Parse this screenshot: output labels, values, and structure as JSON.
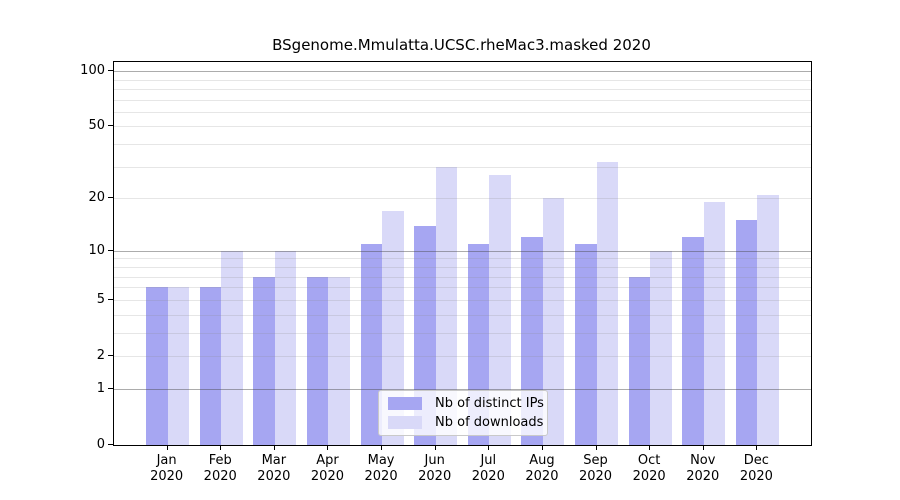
{
  "chart_data": {
    "type": "bar",
    "title": "BSgenome.Mmulatta.UCSC.rheMac3.masked 2020",
    "categories": [
      "Jan",
      "Feb",
      "Mar",
      "Apr",
      "May",
      "Jun",
      "Jul",
      "Aug",
      "Sep",
      "Oct",
      "Nov",
      "Dec"
    ],
    "year_label": "2020",
    "series": [
      {
        "name": "Nb of distinct IPs",
        "color": "#a6a6f2",
        "values": [
          6,
          6,
          7,
          7,
          11,
          14,
          11,
          12,
          11,
          7,
          12,
          15
        ]
      },
      {
        "name": "Nb of downloads",
        "color": "#d9d9f8",
        "values": [
          6,
          10,
          10,
          7,
          17,
          30,
          27,
          20,
          32,
          10,
          19,
          21
        ]
      }
    ],
    "xlabel": "",
    "ylabel": "",
    "yscale": "log1p",
    "ylim": [
      0,
      112
    ],
    "yticks": [
      0,
      1,
      2,
      5,
      10,
      20,
      50,
      100
    ],
    "gridlines_minor": [
      2,
      3,
      4,
      5,
      6,
      7,
      8,
      9,
      20,
      30,
      40,
      50,
      60,
      70,
      80,
      90
    ],
    "gridlines_major": [
      1,
      10,
      100
    ],
    "grid_minor_color": "rgba(140,140,140,0.22)",
    "grid_major_color": "rgba(70,70,70,0.45)",
    "legend_position": "bottom-center",
    "grid": "on"
  }
}
